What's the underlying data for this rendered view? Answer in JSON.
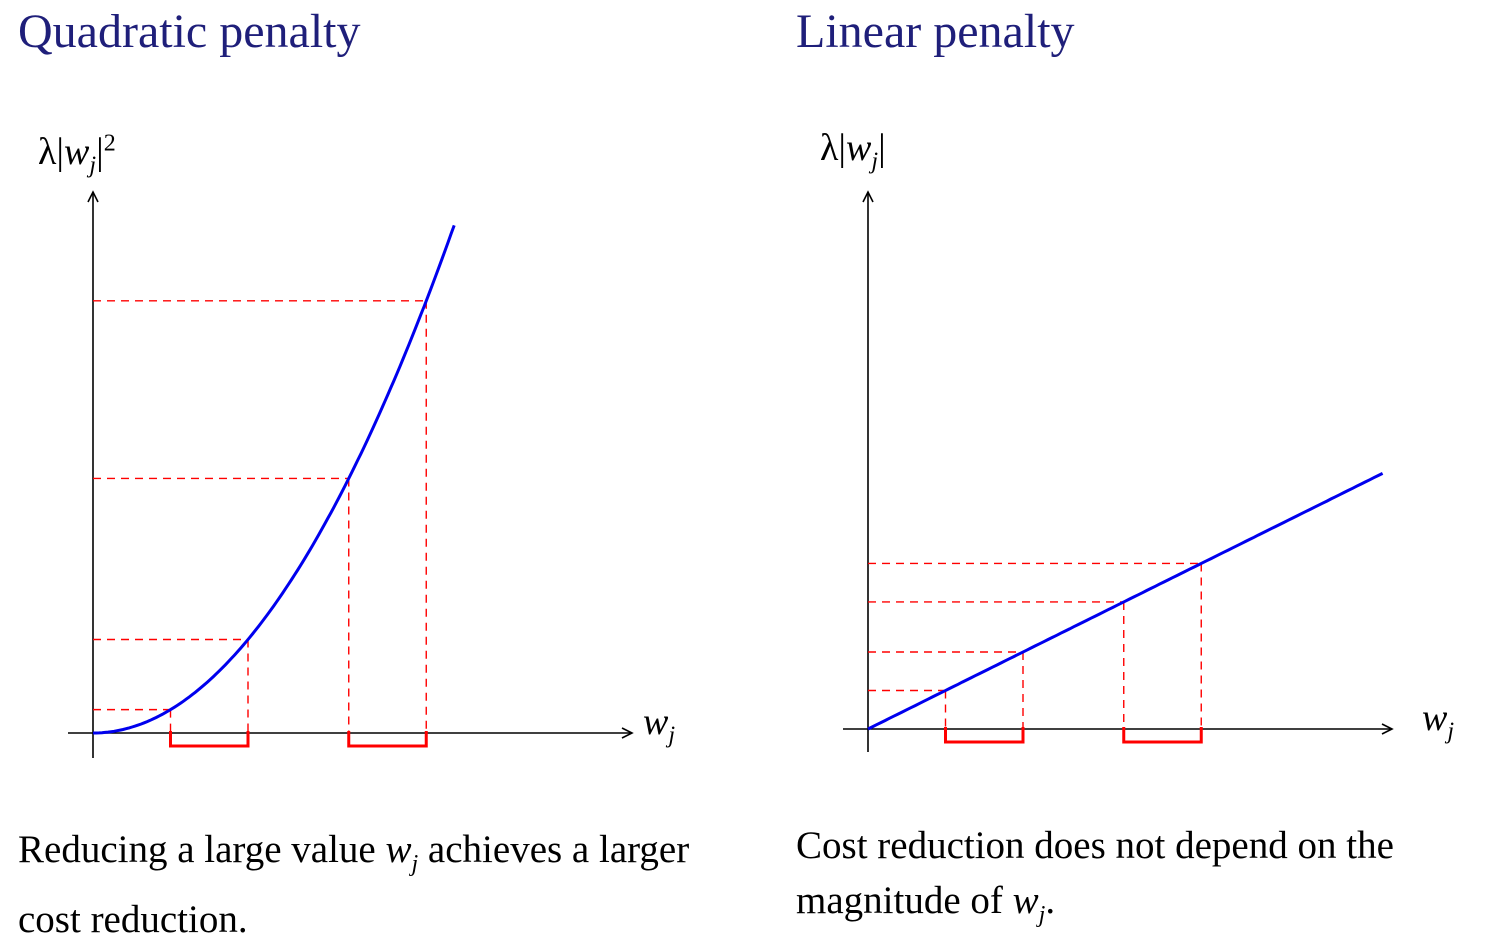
{
  "panels": [
    {
      "title": "Quadratic penalty",
      "ylabel": {
        "prefix": "λ|",
        "var": "w",
        "sub": "j",
        "suffix": "|",
        "sup": "2"
      },
      "xlabel": {
        "var": "w",
        "sub": "j"
      },
      "caption": {
        "before": "Reducing a large value ",
        "var": "w",
        "sub": "j",
        "after": " achieves a larger cost reduction."
      },
      "curve": "quadratic",
      "intervals": [
        [
          0.5,
          1.0
        ],
        [
          1.65,
          2.15
        ]
      ]
    },
    {
      "title": "Linear penalty",
      "ylabel": {
        "prefix": "λ|",
        "var": "w",
        "sub": "j",
        "suffix": "|",
        "sup": ""
      },
      "xlabel": {
        "var": "w",
        "sub": "j"
      },
      "caption": {
        "before": "Cost reduction does not depend on the magnitude of ",
        "var": "w",
        "sub": "j",
        "after": "."
      },
      "curve": "linear",
      "intervals": [
        [
          0.5,
          1.0
        ],
        [
          1.65,
          2.15
        ]
      ]
    }
  ],
  "colors": {
    "title": "#1f1f7a",
    "curve": "#0000ee",
    "guides": "#ff0000",
    "axes": "#000000"
  }
}
